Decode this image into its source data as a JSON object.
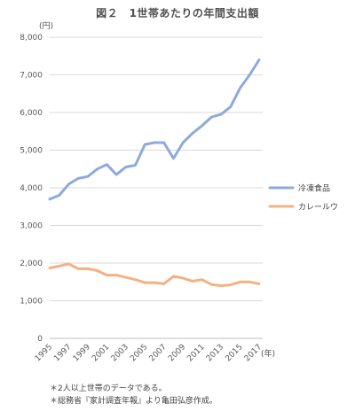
{
  "chart_data": {
    "type": "line",
    "title": "図２　1世帯あたりの年間支出額",
    "ylabel": "(円)",
    "xlabel": "(年)",
    "ylim": [
      0,
      8000
    ],
    "yticks": [
      "0",
      "1,000",
      "2,000",
      "3,000",
      "4,000",
      "5,000",
      "6,000",
      "7,000",
      "8,000"
    ],
    "xticks": [
      "1995",
      "1997",
      "1999",
      "2001",
      "2003",
      "2005",
      "2007",
      "2009",
      "2011",
      "2013",
      "2015",
      "2017"
    ],
    "grid": true,
    "legend": "right",
    "x": [
      1995,
      1996,
      1997,
      1998,
      1999,
      2000,
      2001,
      2002,
      2003,
      2004,
      2005,
      2006,
      2007,
      2008,
      2009,
      2010,
      2011,
      2012,
      2013,
      2014,
      2015,
      2016,
      2017
    ],
    "series": [
      {
        "name": "冷凍食品",
        "color": "#8eaadb",
        "values": [
          3700,
          3800,
          4100,
          4250,
          4300,
          4500,
          4620,
          4350,
          4550,
          4600,
          5150,
          5200,
          5200,
          4780,
          5200,
          5450,
          5650,
          5880,
          5950,
          6150,
          6650,
          7000,
          7400
        ]
      },
      {
        "name": "カレールウ",
        "color": "#f4b183",
        "values": [
          1870,
          1920,
          1980,
          1850,
          1850,
          1800,
          1680,
          1680,
          1620,
          1560,
          1480,
          1480,
          1450,
          1650,
          1600,
          1520,
          1560,
          1430,
          1400,
          1420,
          1500,
          1500,
          1450
        ]
      }
    ]
  },
  "notes": [
    "＊2人以上世帯のデータである。",
    "＊総務省『家計調査年報』より亀田弘彦作成。"
  ]
}
